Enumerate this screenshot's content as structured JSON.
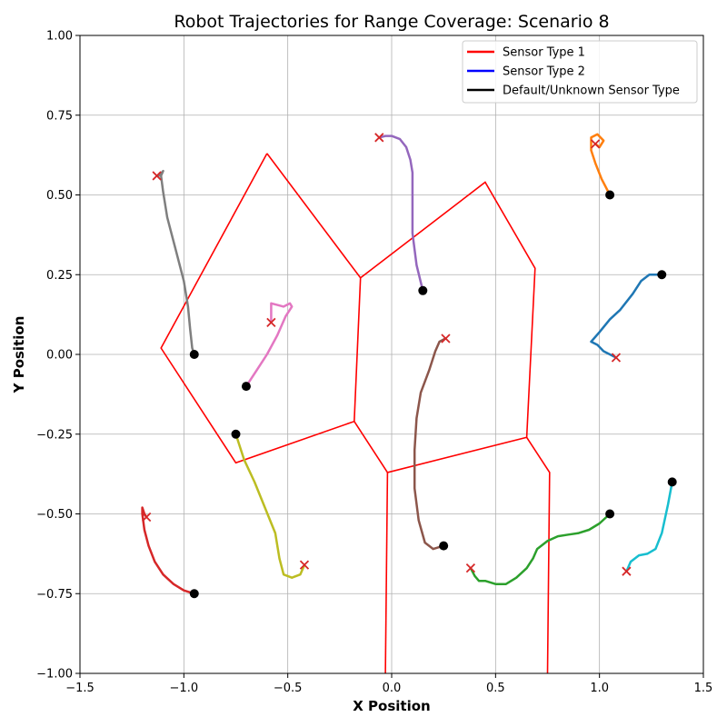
{
  "chart_data": {
    "type": "line",
    "title": "Robot Trajectories for Range Coverage: Scenario 8",
    "xlabel": "X Position",
    "ylabel": "Y Position",
    "xlim": [
      -1.5,
      1.5
    ],
    "ylim": [
      -1.0,
      1.0
    ],
    "xticks": [
      -1.5,
      -1.0,
      -0.5,
      0.0,
      0.5,
      1.0,
      1.5
    ],
    "yticks": [
      -1.0,
      -0.75,
      -0.5,
      -0.25,
      0.0,
      0.25,
      0.5,
      0.75,
      1.0
    ],
    "xtick_labels": [
      "−1.5",
      "−1.0",
      "−0.5",
      "0.0",
      "0.5",
      "1.0",
      "1.5"
    ],
    "ytick_labels": [
      "−1.00",
      "−0.75",
      "−0.50",
      "−0.25",
      "0.00",
      "0.25",
      "0.50",
      "0.75",
      "1.00"
    ],
    "grid": true,
    "legend_position": "top-right",
    "legend": [
      {
        "label": "Sensor Type 1",
        "color": "#ff0000"
      },
      {
        "label": "Sensor Type 2",
        "color": "#0000ff"
      },
      {
        "label": "Default/Unknown Sensor Type",
        "color": "#000000"
      }
    ],
    "partition_lines": [
      {
        "color": "#ff0000",
        "points": [
          [
            -0.6,
            0.63
          ],
          [
            -0.15,
            0.24
          ],
          [
            -0.18,
            -0.21
          ],
          [
            -0.75,
            -0.34
          ],
          [
            -1.11,
            0.02
          ],
          [
            -0.6,
            0.63
          ]
        ]
      },
      {
        "color": "#ff0000",
        "points": [
          [
            -0.15,
            0.24
          ],
          [
            0.45,
            0.54
          ],
          [
            0.69,
            0.27
          ],
          [
            0.65,
            -0.26
          ],
          [
            -0.02,
            -0.37
          ],
          [
            -0.18,
            -0.21
          ]
        ]
      },
      {
        "color": "#ff0000",
        "points": [
          [
            -0.02,
            -0.37
          ],
          [
            -0.03,
            -1.0
          ]
        ]
      },
      {
        "color": "#ff0000",
        "points": [
          [
            0.65,
            -0.26
          ],
          [
            0.76,
            -0.37
          ],
          [
            0.75,
            -1.0
          ]
        ]
      }
    ],
    "series": [
      {
        "color": "#1f77b4",
        "start": [
          1.3,
          0.25
        ],
        "end": [
          1.08,
          -0.01
        ],
        "points": [
          [
            1.3,
            0.25
          ],
          [
            1.24,
            0.25
          ],
          [
            1.2,
            0.23
          ],
          [
            1.16,
            0.19
          ],
          [
            1.1,
            0.14
          ],
          [
            1.05,
            0.11
          ],
          [
            1.0,
            0.07
          ],
          [
            0.96,
            0.04
          ],
          [
            0.99,
            0.03
          ],
          [
            1.02,
            0.01
          ],
          [
            1.05,
            0.0
          ],
          [
            1.08,
            -0.01
          ]
        ]
      },
      {
        "color": "#ff7f0e",
        "start": [
          1.05,
          0.5
        ],
        "end": [
          0.98,
          0.66
        ],
        "points": [
          [
            1.05,
            0.5
          ],
          [
            1.01,
            0.55
          ],
          [
            0.98,
            0.6
          ],
          [
            0.96,
            0.64
          ],
          [
            0.96,
            0.68
          ],
          [
            0.99,
            0.69
          ],
          [
            1.02,
            0.67
          ],
          [
            1.0,
            0.65
          ],
          [
            0.98,
            0.66
          ]
        ]
      },
      {
        "color": "#2ca02c",
        "start": [
          1.05,
          -0.5
        ],
        "end": [
          0.38,
          -0.67
        ],
        "points": [
          [
            1.05,
            -0.5
          ],
          [
            1.0,
            -0.53
          ],
          [
            0.95,
            -0.55
          ],
          [
            0.9,
            -0.56
          ],
          [
            0.85,
            -0.565
          ],
          [
            0.8,
            -0.57
          ],
          [
            0.75,
            -0.585
          ],
          [
            0.7,
            -0.61
          ],
          [
            0.68,
            -0.64
          ],
          [
            0.65,
            -0.67
          ],
          [
            0.6,
            -0.7
          ],
          [
            0.55,
            -0.72
          ],
          [
            0.5,
            -0.72
          ],
          [
            0.45,
            -0.71
          ],
          [
            0.42,
            -0.71
          ],
          [
            0.4,
            -0.695
          ],
          [
            0.38,
            -0.67
          ]
        ]
      },
      {
        "color": "#d62728",
        "start": [
          -0.95,
          -0.75
        ],
        "end": [
          -1.18,
          -0.51
        ],
        "points": [
          [
            -0.95,
            -0.75
          ],
          [
            -1.0,
            -0.74
          ],
          [
            -1.05,
            -0.72
          ],
          [
            -1.1,
            -0.69
          ],
          [
            -1.14,
            -0.65
          ],
          [
            -1.17,
            -0.6
          ],
          [
            -1.19,
            -0.55
          ],
          [
            -1.2,
            -0.5
          ],
          [
            -1.2,
            -0.48
          ],
          [
            -1.19,
            -0.5
          ],
          [
            -1.18,
            -0.51
          ]
        ]
      },
      {
        "color": "#9467bd",
        "start": [
          0.15,
          0.2
        ],
        "end": [
          -0.06,
          0.68
        ],
        "points": [
          [
            0.15,
            0.2
          ],
          [
            0.12,
            0.28
          ],
          [
            0.1,
            0.38
          ],
          [
            0.1,
            0.48
          ],
          [
            0.1,
            0.57
          ],
          [
            0.09,
            0.61
          ],
          [
            0.07,
            0.65
          ],
          [
            0.04,
            0.675
          ],
          [
            0.0,
            0.685
          ],
          [
            -0.03,
            0.685
          ],
          [
            -0.06,
            0.68
          ]
        ]
      },
      {
        "color": "#8c564b",
        "start": [
          0.25,
          -0.6
        ],
        "end": [
          0.26,
          0.05
        ],
        "points": [
          [
            0.25,
            -0.6
          ],
          [
            0.2,
            -0.61
          ],
          [
            0.16,
            -0.59
          ],
          [
            0.13,
            -0.52
          ],
          [
            0.11,
            -0.42
          ],
          [
            0.11,
            -0.3
          ],
          [
            0.12,
            -0.2
          ],
          [
            0.14,
            -0.12
          ],
          [
            0.18,
            -0.05
          ],
          [
            0.21,
            0.01
          ],
          [
            0.23,
            0.04
          ],
          [
            0.26,
            0.05
          ]
        ]
      },
      {
        "color": "#e377c2",
        "start": [
          -0.7,
          -0.1
        ],
        "end": [
          -0.58,
          0.1
        ],
        "points": [
          [
            -0.7,
            -0.1
          ],
          [
            -0.65,
            -0.05
          ],
          [
            -0.6,
            0.0
          ],
          [
            -0.55,
            0.06
          ],
          [
            -0.51,
            0.12
          ],
          [
            -0.48,
            0.15
          ],
          [
            -0.49,
            0.16
          ],
          [
            -0.52,
            0.15
          ],
          [
            -0.55,
            0.155
          ],
          [
            -0.58,
            0.16
          ],
          [
            -0.58,
            0.13
          ],
          [
            -0.58,
            0.1
          ]
        ]
      },
      {
        "color": "#7f7f7f",
        "start": [
          -0.95,
          0.0
        ],
        "end": [
          -1.13,
          0.56
        ],
        "points": [
          [
            -0.95,
            0.0
          ],
          [
            -0.96,
            0.02
          ],
          [
            -0.97,
            0.08
          ],
          [
            -0.98,
            0.15
          ],
          [
            -1.0,
            0.23
          ],
          [
            -1.04,
            0.33
          ],
          [
            -1.08,
            0.43
          ],
          [
            -1.1,
            0.51
          ],
          [
            -1.11,
            0.56
          ],
          [
            -1.1,
            0.575
          ],
          [
            -1.12,
            0.56
          ],
          [
            -1.13,
            0.56
          ]
        ]
      },
      {
        "color": "#bcbd22",
        "start": [
          -0.75,
          -0.25
        ],
        "end": [
          -0.42,
          -0.66
        ],
        "points": [
          [
            -0.75,
            -0.25
          ],
          [
            -0.71,
            -0.33
          ],
          [
            -0.66,
            -0.4
          ],
          [
            -0.61,
            -0.48
          ],
          [
            -0.56,
            -0.56
          ],
          [
            -0.54,
            -0.64
          ],
          [
            -0.52,
            -0.69
          ],
          [
            -0.48,
            -0.7
          ],
          [
            -0.44,
            -0.69
          ],
          [
            -0.42,
            -0.66
          ]
        ]
      },
      {
        "color": "#17becf",
        "start": [
          1.35,
          -0.4
        ],
        "end": [
          1.13,
          -0.68
        ],
        "points": [
          [
            1.35,
            -0.4
          ],
          [
            1.33,
            -0.47
          ],
          [
            1.3,
            -0.56
          ],
          [
            1.27,
            -0.61
          ],
          [
            1.23,
            -0.625
          ],
          [
            1.19,
            -0.63
          ],
          [
            1.15,
            -0.65
          ],
          [
            1.13,
            -0.68
          ]
        ]
      }
    ]
  }
}
